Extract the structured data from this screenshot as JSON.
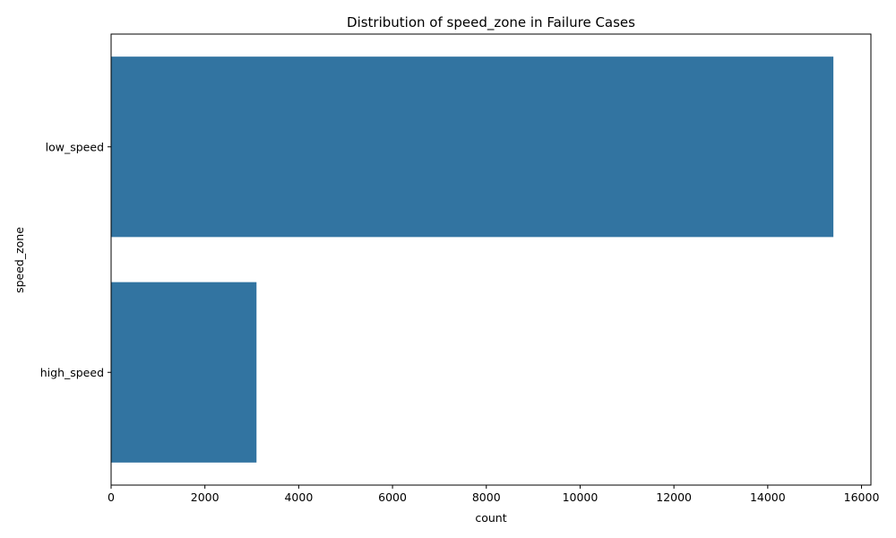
{
  "chart_data": {
    "type": "bar",
    "orientation": "horizontal",
    "title": "Distribution of speed_zone in Failure Cases",
    "xlabel": "count",
    "ylabel": "speed_zone",
    "categories": [
      "low_speed",
      "high_speed"
    ],
    "values": [
      15400,
      3100
    ],
    "xlim": [
      0,
      16200
    ],
    "xticks": [
      0,
      2000,
      4000,
      6000,
      8000,
      10000,
      12000,
      14000,
      16000
    ],
    "grid": false,
    "legend": "none",
    "bar_color": "#3274a1"
  }
}
